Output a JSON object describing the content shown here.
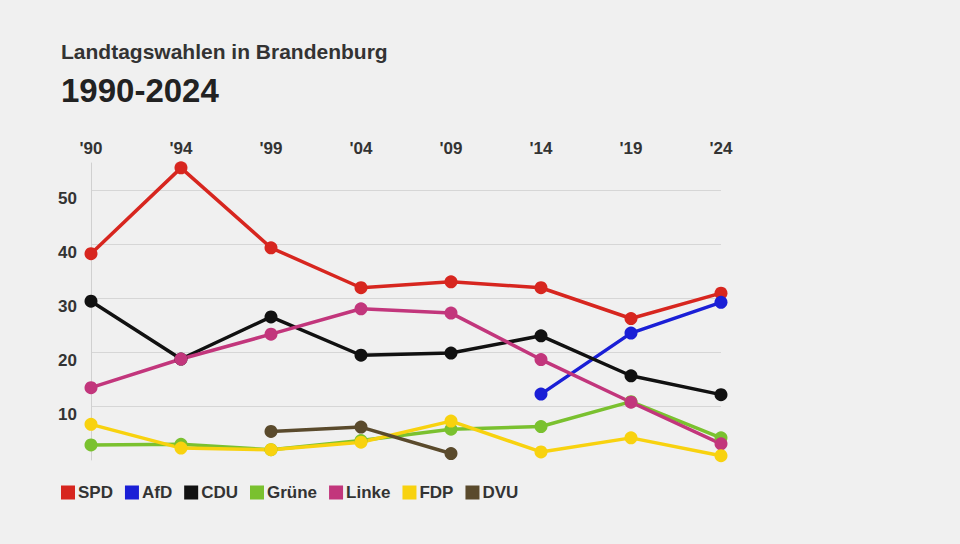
{
  "chart_data": {
    "type": "line",
    "title": "Landtagswahlen in Brandenburg",
    "subtitle": "1990-2024",
    "categories": [
      "'90",
      "'94",
      "'99",
      "'04",
      "'09",
      "'14",
      "'19",
      "'24"
    ],
    "series": [
      {
        "name": "SPD",
        "color": "#d7261f",
        "values": [
          38.2,
          54.1,
          39.3,
          31.9,
          33.0,
          31.9,
          26.2,
          30.9
        ]
      },
      {
        "name": "AfD",
        "color": "#1a1fd6",
        "values": [
          null,
          null,
          null,
          null,
          null,
          12.2,
          23.5,
          29.2
        ]
      },
      {
        "name": "CDU",
        "color": "#111111",
        "values": [
          29.4,
          18.7,
          26.5,
          19.4,
          19.8,
          23.0,
          15.6,
          12.1
        ]
      },
      {
        "name": "Grüne",
        "color": "#7ac12f",
        "values": [
          2.8,
          2.9,
          1.9,
          3.6,
          5.7,
          6.2,
          10.8,
          4.1
        ]
      },
      {
        "name": "Linke",
        "color": "#c2367c",
        "values": [
          13.4,
          18.7,
          23.3,
          28.0,
          27.2,
          18.6,
          10.7,
          3.0
        ]
      },
      {
        "name": "FDP",
        "color": "#f8d20f",
        "values": [
          6.6,
          2.2,
          1.9,
          3.3,
          7.2,
          1.5,
          4.1,
          0.8
        ]
      },
      {
        "name": "DVU",
        "color": "#5a4a2c",
        "values": [
          null,
          null,
          5.3,
          6.1,
          1.2,
          null,
          null,
          null
        ]
      }
    ],
    "ylim": [
      0,
      55
    ],
    "yticks": [
      10,
      20,
      30,
      40,
      50
    ],
    "grid": true,
    "legend": "bottom",
    "marker": "circle"
  }
}
